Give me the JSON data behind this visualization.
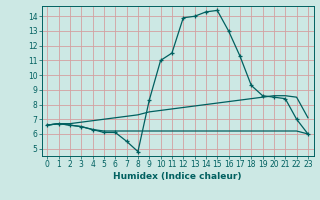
{
  "title": "",
  "xlabel": "Humidex (Indice chaleur)",
  "bg_color": "#cce8e4",
  "grid_color": "#d4a0a0",
  "line_color": "#006060",
  "xlim": [
    -0.5,
    23.5
  ],
  "ylim": [
    4.5,
    14.7
  ],
  "xticks": [
    0,
    1,
    2,
    3,
    4,
    5,
    6,
    7,
    8,
    9,
    10,
    11,
    12,
    13,
    14,
    15,
    16,
    17,
    18,
    19,
    20,
    21,
    22,
    23
  ],
  "yticks": [
    5,
    6,
    7,
    8,
    9,
    10,
    11,
    12,
    13,
    14
  ],
  "series1_x": [
    0,
    1,
    2,
    3,
    4,
    5,
    6,
    7,
    8,
    9,
    10,
    11,
    12,
    13,
    14,
    15,
    16,
    17,
    18,
    19,
    20,
    21,
    22,
    23
  ],
  "series1_y": [
    6.6,
    6.7,
    6.6,
    6.5,
    6.3,
    6.1,
    6.1,
    5.5,
    4.8,
    8.3,
    11.0,
    11.5,
    13.9,
    14.0,
    14.3,
    14.4,
    13.0,
    11.3,
    9.3,
    8.6,
    8.5,
    8.4,
    7.0,
    6.0
  ],
  "series2_x": [
    0,
    1,
    2,
    3,
    4,
    5,
    6,
    7,
    8,
    9,
    10,
    11,
    12,
    13,
    14,
    15,
    16,
    17,
    18,
    19,
    20,
    21,
    22,
    23
  ],
  "series2_y": [
    6.6,
    6.7,
    6.6,
    6.5,
    6.3,
    6.2,
    6.2,
    6.2,
    6.2,
    6.2,
    6.2,
    6.2,
    6.2,
    6.2,
    6.2,
    6.2,
    6.2,
    6.2,
    6.2,
    6.2,
    6.2,
    6.2,
    6.2,
    6.0
  ],
  "series3_x": [
    0,
    1,
    2,
    3,
    4,
    5,
    6,
    7,
    8,
    9,
    10,
    11,
    12,
    13,
    14,
    15,
    16,
    17,
    18,
    19,
    20,
    21,
    22,
    23
  ],
  "series3_y": [
    6.6,
    6.7,
    6.7,
    6.8,
    6.9,
    7.0,
    7.1,
    7.2,
    7.3,
    7.5,
    7.6,
    7.7,
    7.8,
    7.9,
    8.0,
    8.1,
    8.2,
    8.3,
    8.4,
    8.5,
    8.6,
    8.6,
    8.5,
    7.1
  ],
  "tick_fontsize": 5.5,
  "xlabel_fontsize": 6.5
}
